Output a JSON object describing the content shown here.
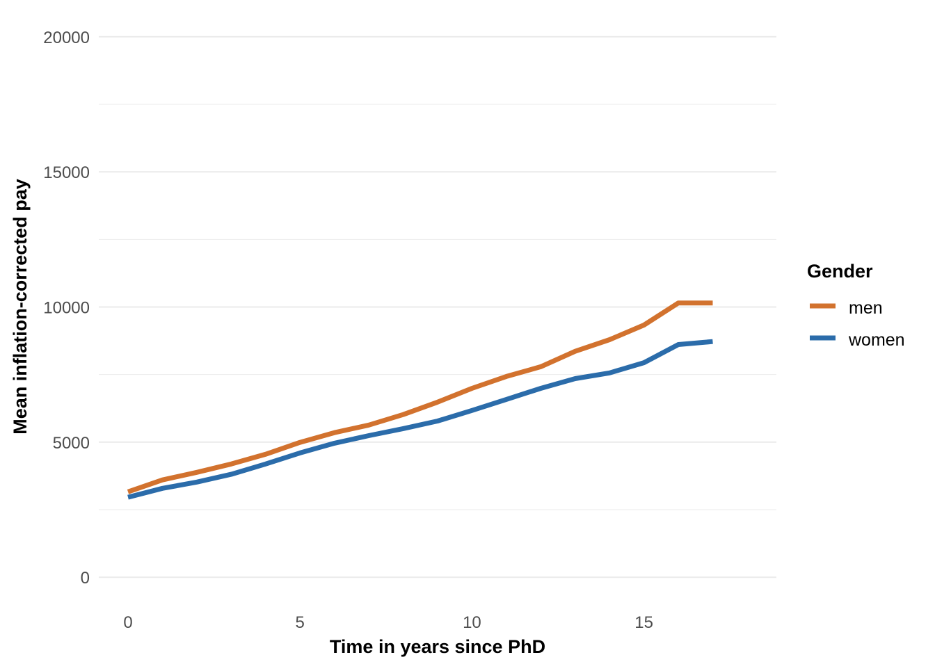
{
  "chart_data": {
    "type": "line",
    "title": "",
    "xlabel": "Time in years since PhD",
    "ylabel": "Mean inflation-corrected pay",
    "xlim": [
      -0.85,
      18.85
    ],
    "ylim": [
      -1000,
      21000
    ],
    "x_ticks": [
      0,
      5,
      10,
      15
    ],
    "x_tick_labels": [
      "0",
      "5",
      "10",
      "15"
    ],
    "y_ticks": [
      0,
      5000,
      10000,
      15000,
      20000
    ],
    "y_tick_labels": [
      "0",
      "5000",
      "10000",
      "15000",
      "20000"
    ],
    "y_minor_ticks": [
      2500,
      7500,
      12500,
      17500
    ],
    "grid": true,
    "x": [
      0,
      1,
      2,
      3,
      4,
      5,
      6,
      7,
      8,
      9,
      10,
      11,
      12,
      13,
      14,
      15,
      16,
      17
    ],
    "series": [
      {
        "name": "men",
        "color": "#D2722E",
        "values": [
          3160,
          3600,
          3880,
          4190,
          4550,
          4990,
          5350,
          5630,
          6020,
          6480,
          6990,
          7430,
          7790,
          8360,
          8790,
          9330,
          10150,
          10150
        ]
      },
      {
        "name": "women",
        "color": "#2B6CAA",
        "values": [
          2960,
          3290,
          3520,
          3810,
          4190,
          4600,
          4960,
          5240,
          5500,
          5780,
          6170,
          6580,
          6990,
          7350,
          7560,
          7940,
          8610,
          8720
        ]
      }
    ],
    "legend": {
      "title": "Gender",
      "placement": "right"
    }
  }
}
